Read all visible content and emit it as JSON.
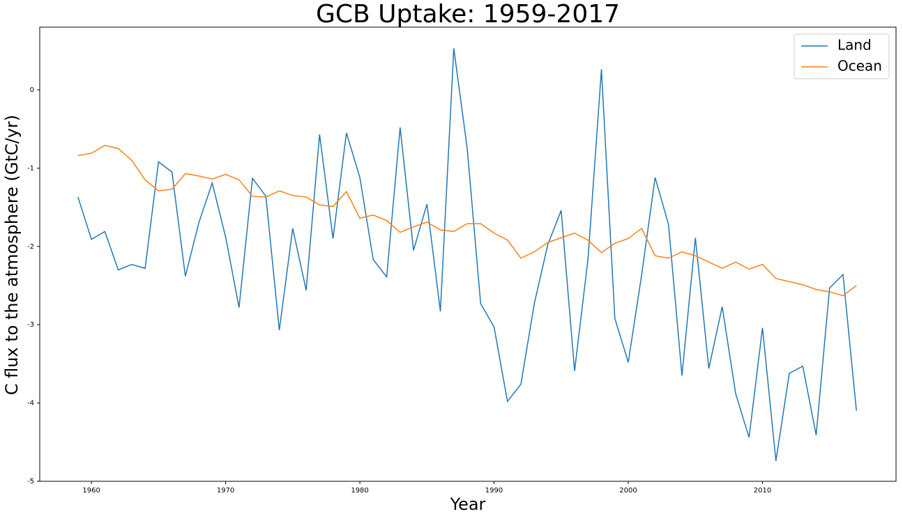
{
  "chart_data": {
    "type": "line",
    "title": "GCB Uptake: 1959-2017",
    "xlabel": "Year",
    "ylabel": "C flux to the atmosphere (GtC/yr)",
    "x": [
      1959,
      1960,
      1961,
      1962,
      1963,
      1964,
      1965,
      1966,
      1967,
      1968,
      1969,
      1970,
      1971,
      1972,
      1973,
      1974,
      1975,
      1976,
      1977,
      1978,
      1979,
      1980,
      1981,
      1982,
      1983,
      1984,
      1985,
      1986,
      1987,
      1988,
      1989,
      1990,
      1991,
      1992,
      1993,
      1994,
      1995,
      1996,
      1997,
      1998,
      1999,
      2000,
      2001,
      2002,
      2003,
      2004,
      2005,
      2006,
      2007,
      2008,
      2009,
      2010,
      2011,
      2012,
      2013,
      2014,
      2015,
      2016,
      2017
    ],
    "series": [
      {
        "name": "Land",
        "color": "#1f77b4",
        "values": [
          -1.37,
          -1.91,
          -1.81,
          -2.3,
          -2.23,
          -2.28,
          -0.92,
          -1.05,
          -2.38,
          -1.7,
          -1.19,
          -1.88,
          -2.78,
          -1.13,
          -1.36,
          -3.07,
          -1.77,
          -2.56,
          -0.57,
          -1.9,
          -0.55,
          -1.12,
          -2.17,
          -2.39,
          -0.48,
          -2.05,
          -1.46,
          -2.83,
          0.53,
          -0.75,
          -2.73,
          -3.03,
          -3.98,
          -3.76,
          -2.73,
          -1.98,
          -1.54,
          -3.59,
          -2.16,
          0.26,
          -2.92,
          -3.48,
          -2.36,
          -1.12,
          -1.72,
          -3.65,
          -1.89,
          -3.56,
          -2.77,
          -3.88,
          -4.44,
          -3.04,
          -4.74,
          -3.62,
          -3.53,
          -4.41,
          -2.53,
          -2.36,
          -4.1
        ]
      },
      {
        "name": "Ocean",
        "color": "#ff7f0e",
        "values": [
          -0.84,
          -0.81,
          -0.71,
          -0.75,
          -0.9,
          -1.15,
          -1.29,
          -1.27,
          -1.07,
          -1.1,
          -1.14,
          -1.08,
          -1.15,
          -1.36,
          -1.37,
          -1.29,
          -1.35,
          -1.37,
          -1.47,
          -1.49,
          -1.3,
          -1.64,
          -1.6,
          -1.67,
          -1.82,
          -1.75,
          -1.69,
          -1.79,
          -1.81,
          -1.71,
          -1.71,
          -1.83,
          -1.92,
          -2.15,
          -2.07,
          -1.95,
          -1.89,
          -1.83,
          -1.92,
          -2.08,
          -1.96,
          -1.9,
          -1.77,
          -2.12,
          -2.15,
          -2.07,
          -2.12,
          -2.2,
          -2.28,
          -2.2,
          -2.29,
          -2.23,
          -2.41,
          -2.45,
          -2.49,
          -2.55,
          -2.58,
          -2.63,
          -2.5
        ]
      }
    ],
    "xlim": [
      1956.15,
      2019.95
    ],
    "ylim": [
      -5,
      0.8
    ],
    "xticks": [
      1960,
      1970,
      1980,
      1990,
      2000,
      2010
    ],
    "yticks": [
      -5,
      -4,
      -3,
      -2,
      -1,
      0
    ],
    "legend": "upper right"
  }
}
